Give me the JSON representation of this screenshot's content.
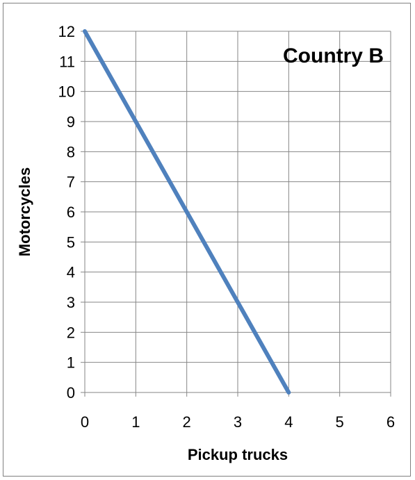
{
  "chart_data": {
    "type": "line",
    "title": "Country B",
    "xlabel": "Pickup trucks",
    "ylabel": "Motorcycles",
    "xlim": [
      0,
      6
    ],
    "ylim": [
      0,
      12
    ],
    "xticks": [
      "0",
      "1",
      "2",
      "3",
      "4",
      "5",
      "6"
    ],
    "yticks": [
      "0",
      "1",
      "2",
      "3",
      "4",
      "5",
      "6",
      "7",
      "8",
      "9",
      "10",
      "11",
      "12"
    ],
    "grid": true,
    "series": [
      {
        "x": [
          0,
          4
        ],
        "y": [
          12,
          0
        ],
        "color": "#4f81bd"
      }
    ]
  }
}
